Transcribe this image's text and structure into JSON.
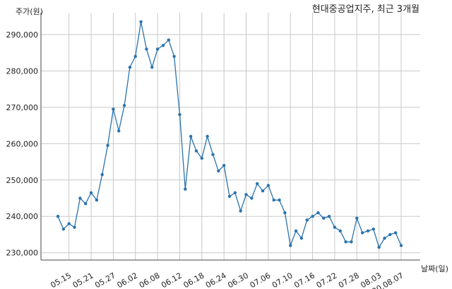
{
  "chart_data": {
    "type": "line",
    "title": "현대중공업지주, 최근 3개월",
    "ylabel": "주가(원)",
    "xlabel": "날짜(일)",
    "ylim": [
      228000,
      296000
    ],
    "y_ticks": [
      230000,
      240000,
      250000,
      260000,
      270000,
      280000,
      290000
    ],
    "y_tick_labels": [
      "230,000",
      "240,000",
      "250,000",
      "260,000",
      "270,000",
      "280,000",
      "290,000"
    ],
    "x_tick_labels": [
      "05.15",
      "05.21",
      "05.27",
      "06.02",
      "06.08",
      "06.12",
      "06.18",
      "06.24",
      "06.30",
      "07.06",
      "07.10",
      "07.16",
      "07.22",
      "07.28",
      "08.03",
      "20.08.07"
    ],
    "x_tick_index": [
      2,
      6,
      10,
      14,
      18,
      22,
      26,
      30,
      34,
      38,
      42,
      46,
      50,
      54,
      58,
      62
    ],
    "line_color": "#2b73ac",
    "grid": true,
    "series": [
      {
        "values": [
          240000,
          236500,
          238000,
          237000,
          245000,
          243500,
          246500,
          244500,
          251500,
          259500,
          269500,
          263500,
          270500,
          281000,
          284000,
          293500,
          286000,
          281000,
          286000,
          287000,
          288500,
          284000,
          268000,
          247500,
          262000,
          258000,
          256000,
          262000,
          257000,
          252500,
          254000,
          245500,
          246500,
          241500,
          246000,
          245000,
          249000,
          247000,
          248500,
          244500,
          244500,
          241000,
          232000,
          236000,
          234000,
          239000,
          240000,
          241000,
          239500,
          240000,
          237000,
          236000,
          233000,
          233000,
          239500,
          235500,
          236000,
          236500,
          231500,
          234000,
          235000,
          235500,
          232000
        ]
      }
    ]
  }
}
